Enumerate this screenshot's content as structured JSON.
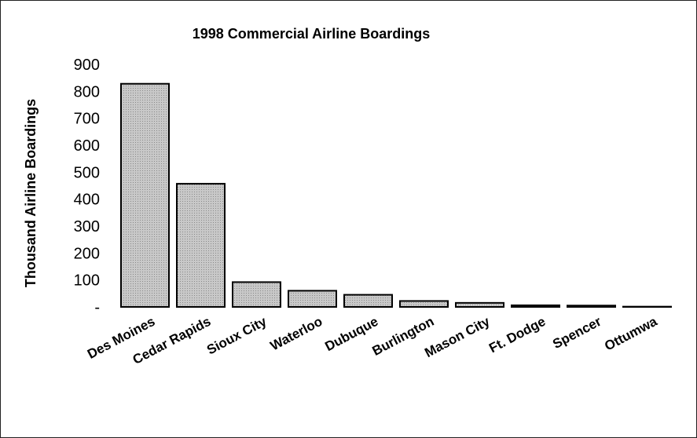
{
  "chart_data": {
    "type": "bar",
    "title": "1998 Commercial Airline Boardings",
    "xlabel": "",
    "ylabel": "Thousand Airline Boardings",
    "categories": [
      "Des Moines",
      "Cedar Rapids",
      "Sioux City",
      "Waterloo",
      "Dubuque",
      "Burlington",
      "Mason City",
      "Ft. Dodge",
      "Spencer",
      "Ottumwa"
    ],
    "values": [
      828,
      457,
      92,
      60,
      45,
      22,
      15,
      6,
      5,
      1
    ],
    "ylim": [
      0,
      900
    ],
    "yticks": [
      {
        "value": 0,
        "label": "-"
      },
      {
        "value": 100,
        "label": "100"
      },
      {
        "value": 200,
        "label": "200"
      },
      {
        "value": 300,
        "label": "300"
      },
      {
        "value": 400,
        "label": "400"
      },
      {
        "value": 500,
        "label": "500"
      },
      {
        "value": 600,
        "label": "600"
      },
      {
        "value": 700,
        "label": "700"
      },
      {
        "value": 800,
        "label": "800"
      },
      {
        "value": 900,
        "label": "900"
      }
    ],
    "grid": false,
    "legend": "none",
    "bar_color": "#c8c8c8",
    "bar_edge_color": "#000000"
  }
}
